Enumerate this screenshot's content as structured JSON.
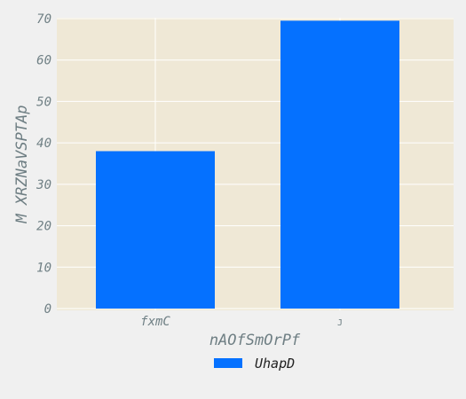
{
  "chart_data": {
    "type": "bar",
    "categories": [
      "fxmC",
      "J"
    ],
    "series": [
      {
        "name": "UhapD",
        "values": [
          38,
          69.5
        ]
      }
    ],
    "xlabel": "nAOfSmOrPf",
    "ylabel": "M XRZNaVSPTAp",
    "ylim": [
      0,
      70
    ],
    "yticks": [
      0,
      10,
      20,
      30,
      40,
      50,
      60,
      70
    ],
    "grid": true,
    "legend_position": "bottom-center"
  },
  "colors": {
    "figure_background": "#f0f0f0",
    "plot_background": "#efe8d6",
    "grid": "#ffffff",
    "bar": "#0571ff",
    "text": "#708085"
  }
}
